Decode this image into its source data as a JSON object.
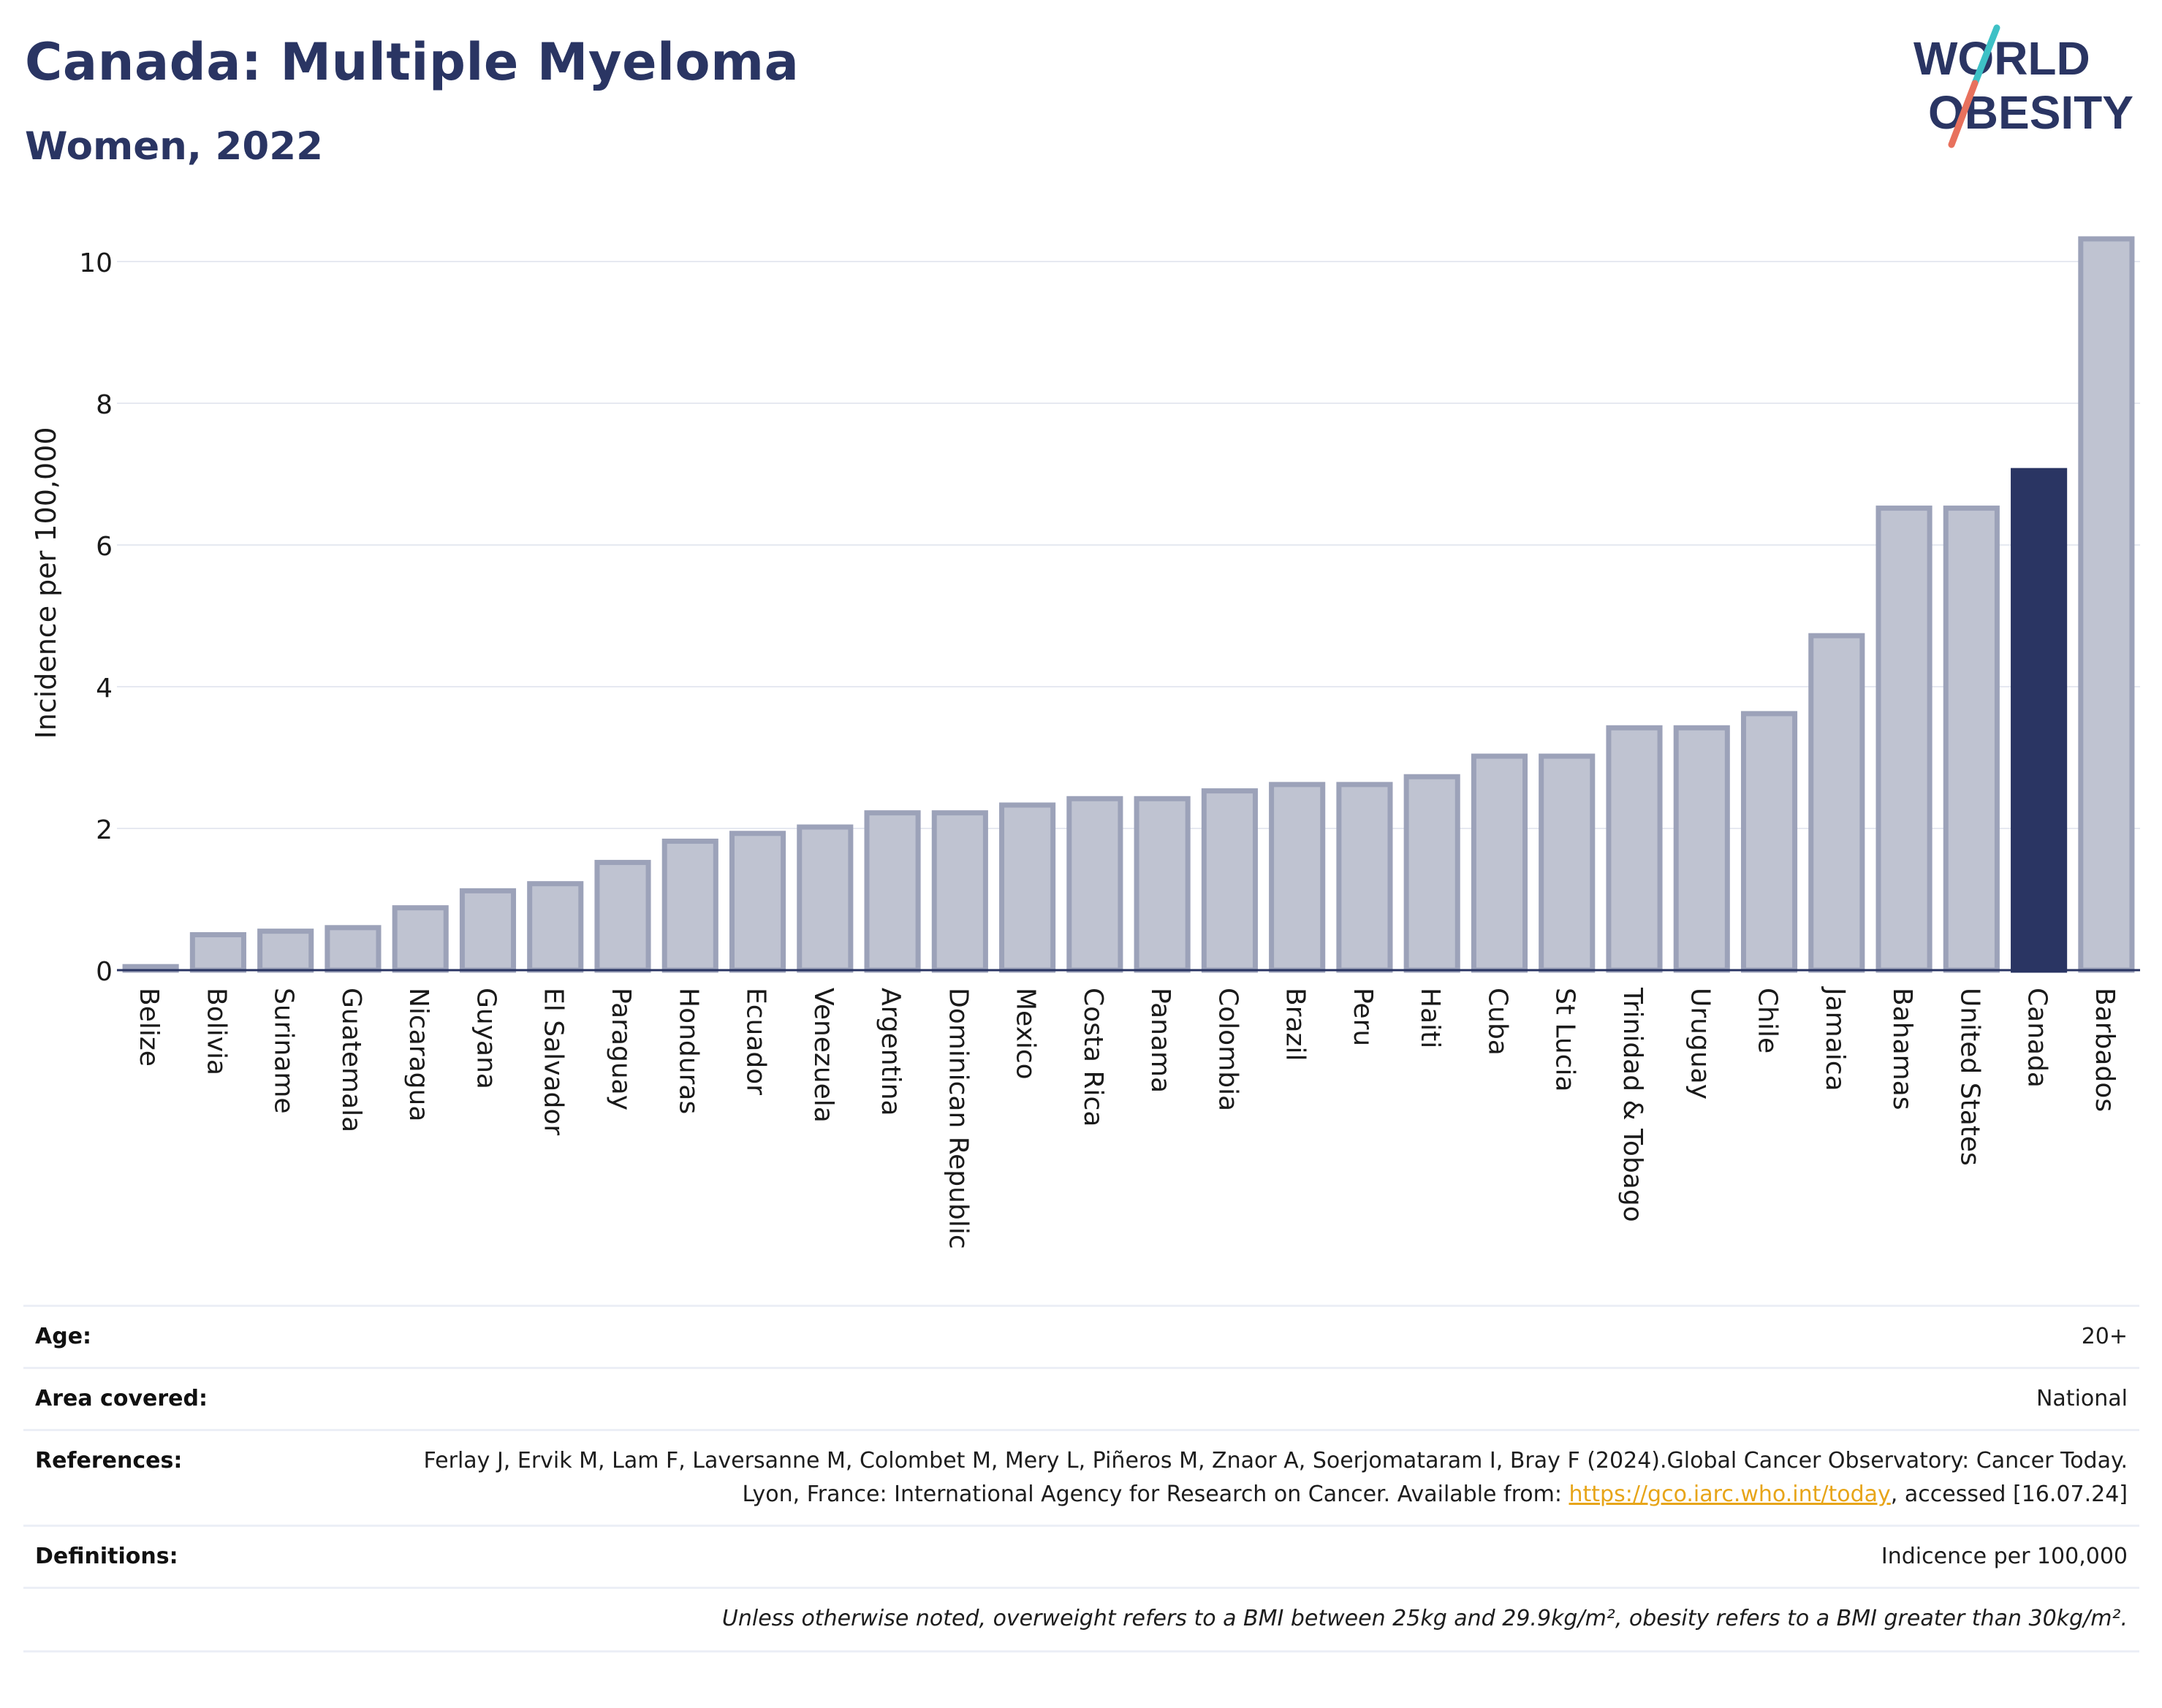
{
  "header": {
    "title": "Canada: Multiple Myeloma",
    "subtitle": "Women, 2022"
  },
  "logo": {
    "line1": "WORLD",
    "line2": "OBESITY"
  },
  "colors": {
    "highlight": "#2a3563",
    "bar_fill": "#bfc3d1",
    "bar_stroke": "#9ca2b9",
    "grid": "#e6e9f1",
    "link": "#e7a519",
    "logo_teal": "#3ec1c6",
    "logo_coral": "#e8715d"
  },
  "chart_data": {
    "type": "bar",
    "ylabel": "Incidence per 100,000",
    "ylim": [
      0,
      10.5
    ],
    "yticks": [
      0,
      2,
      4,
      6,
      8,
      10
    ],
    "grid": true,
    "highlight": "Canada",
    "categories": [
      "Belize",
      "Bolivia",
      "Suriname",
      "Guatemala",
      "Nicaragua",
      "Guyana",
      "El Salvador",
      "Paraguay",
      "Honduras",
      "Ecuador",
      "Venezuela",
      "Argentina",
      "Dominican Republic",
      "Mexico",
      "Costa Rica",
      "Panama",
      "Colombia",
      "Brazil",
      "Peru",
      "Haiti",
      "Cuba",
      "St Lucia",
      "Trinidad & Tobago",
      "Uruguay",
      "Chile",
      "Jamaica",
      "Bahamas",
      "United States",
      "Canada",
      "Barbados"
    ],
    "values": [
      0.05,
      0.5,
      0.55,
      0.6,
      0.88,
      1.12,
      1.22,
      1.52,
      1.82,
      1.93,
      2.02,
      2.22,
      2.22,
      2.33,
      2.42,
      2.42,
      2.53,
      2.62,
      2.62,
      2.73,
      3.02,
      3.02,
      3.42,
      3.42,
      3.62,
      4.72,
      6.52,
      6.52,
      7.05,
      10.32
    ]
  },
  "info": {
    "age_label": "Age:",
    "age_value": "20+",
    "area_label": "Area covered:",
    "area_value": "National",
    "references_label": "References:",
    "references_text_1": "Ferlay J, Ervik M, Lam F, Laversanne M, Colombet M, Mery L, Piñeros M, Znaor A, Soerjomataram I, Bray F (2024).Global Cancer Observatory: Cancer Today. Lyon, France: International Agency for Research on Cancer. Available from: ",
    "references_link": "https://gco.iarc.who.int/today",
    "references_text_2": ", accessed [16.07.24]",
    "definitions_label": "Definitions:",
    "definitions_value": "Indicence per 100,000",
    "note": "Unless otherwise noted, overweight refers to a BMI between 25kg and 29.9kg/m², obesity refers to a BMI greater than 30kg/m²."
  }
}
